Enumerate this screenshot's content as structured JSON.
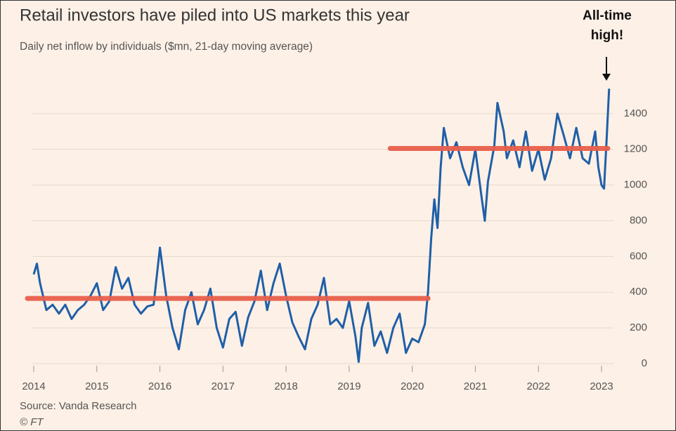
{
  "chart_data": {
    "type": "line",
    "title": "Retail investors have piled into US markets this year",
    "subtitle": "Daily net inflow by individuals ($mn, 21-day moving average)",
    "source": "Source: Vanda Research",
    "credit": "© FT",
    "annotation": "All-time high!",
    "x": [
      2014.0,
      2014.05,
      2014.1,
      2014.2,
      2014.3,
      2014.4,
      2014.5,
      2014.6,
      2014.7,
      2014.8,
      2014.9,
      2015.0,
      2015.1,
      2015.2,
      2015.3,
      2015.4,
      2015.5,
      2015.6,
      2015.7,
      2015.8,
      2015.9,
      2016.0,
      2016.1,
      2016.2,
      2016.3,
      2016.4,
      2016.5,
      2016.6,
      2016.7,
      2016.8,
      2016.9,
      2017.0,
      2017.1,
      2017.2,
      2017.3,
      2017.4,
      2017.5,
      2017.6,
      2017.7,
      2017.8,
      2017.9,
      2018.0,
      2018.1,
      2018.2,
      2018.3,
      2018.4,
      2018.5,
      2018.6,
      2018.7,
      2018.8,
      2018.9,
      2019.0,
      2019.1,
      2019.15,
      2019.2,
      2019.3,
      2019.4,
      2019.5,
      2019.6,
      2019.7,
      2019.8,
      2019.9,
      2020.0,
      2020.1,
      2020.2,
      2020.25,
      2020.3,
      2020.35,
      2020.4,
      2020.45,
      2020.5,
      2020.6,
      2020.7,
      2020.8,
      2020.9,
      2021.0,
      2021.1,
      2021.15,
      2021.2,
      2021.3,
      2021.35,
      2021.45,
      2021.5,
      2021.6,
      2021.7,
      2021.8,
      2021.9,
      2022.0,
      2022.1,
      2022.2,
      2022.3,
      2022.4,
      2022.5,
      2022.6,
      2022.7,
      2022.8,
      2022.9,
      2022.95,
      2023.0,
      2023.04,
      2023.08,
      2023.12
    ],
    "series": [
      {
        "name": "Daily net inflow",
        "color": "#1f5fa8",
        "values": [
          500,
          560,
          450,
          300,
          330,
          280,
          330,
          250,
          300,
          330,
          380,
          450,
          300,
          350,
          540,
          420,
          480,
          330,
          280,
          320,
          330,
          650,
          380,
          200,
          80,
          300,
          400,
          220,
          300,
          420,
          200,
          90,
          250,
          290,
          100,
          260,
          350,
          520,
          300,
          450,
          560,
          380,
          230,
          150,
          80,
          250,
          330,
          480,
          220,
          250,
          200,
          350,
          150,
          10,
          200,
          340,
          100,
          180,
          60,
          200,
          280,
          60,
          140,
          120,
          220,
          400,
          700,
          920,
          760,
          1100,
          1320,
          1150,
          1240,
          1100,
          1000,
          1200,
          930,
          800,
          1020,
          1220,
          1460,
          1300,
          1150,
          1250,
          1100,
          1300,
          1080,
          1200,
          1030,
          1150,
          1400,
          1280,
          1150,
          1320,
          1150,
          1120,
          1300,
          1100,
          1000,
          980,
          1250,
          1540
        ]
      }
    ],
    "reference_lines": [
      {
        "value": 365,
        "x_start": 2013.9,
        "x_end": 2020.25,
        "color": "#e8604c"
      },
      {
        "value": 1205,
        "x_start": 2019.65,
        "x_end": 2023.1,
        "color": "#e8604c"
      }
    ],
    "xlim": [
      2014,
      2023
    ],
    "xticks": [
      2014,
      2015,
      2016,
      2017,
      2018,
      2019,
      2020,
      2021,
      2022,
      2023
    ],
    "ylim": [
      0,
      1600
    ],
    "yticks": [
      0,
      200,
      400,
      600,
      800,
      1000,
      1200,
      1400
    ],
    "grid": true
  }
}
